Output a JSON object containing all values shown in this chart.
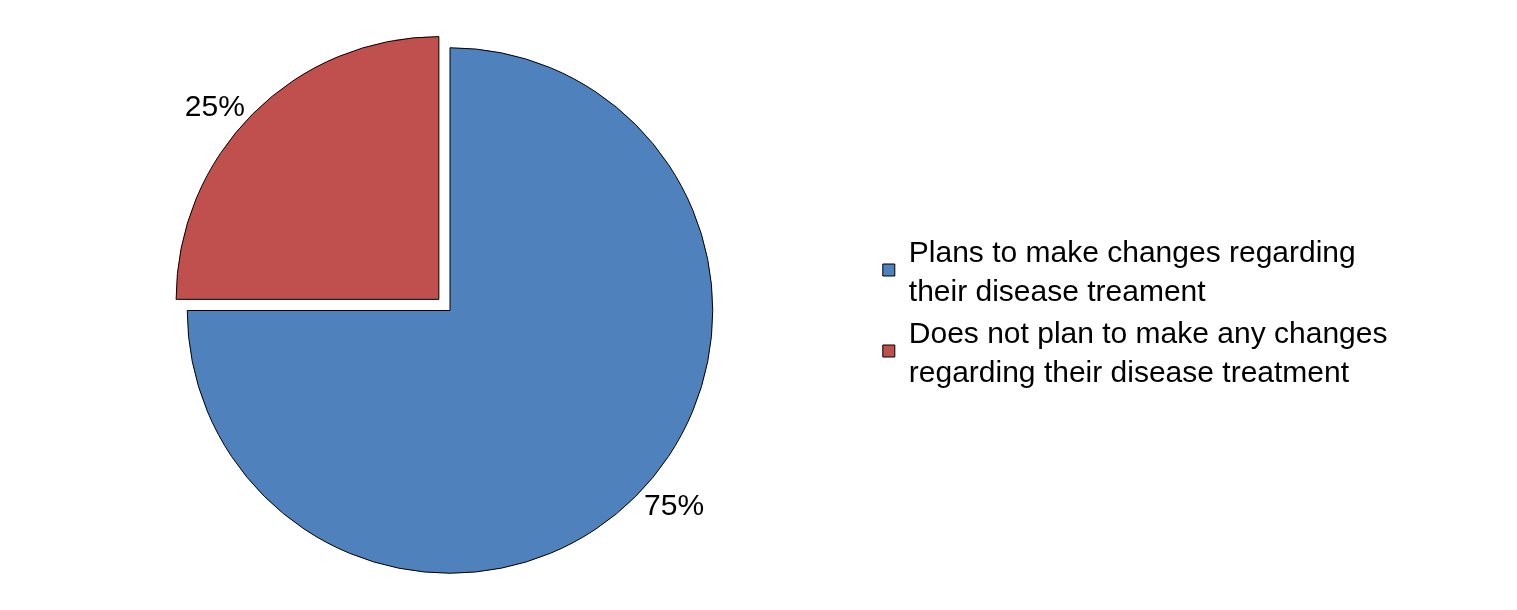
{
  "chart_data": {
    "type": "pie",
    "categories": [
      "Plans to make changes regarding their disease treament",
      "Does not plan to make any changes regarding their disease treatment"
    ],
    "values": [
      75,
      25
    ],
    "colors": [
      "#4f81bd",
      "#c0504d"
    ],
    "value_labels": [
      "75%",
      "25%"
    ],
    "legend": "right"
  }
}
